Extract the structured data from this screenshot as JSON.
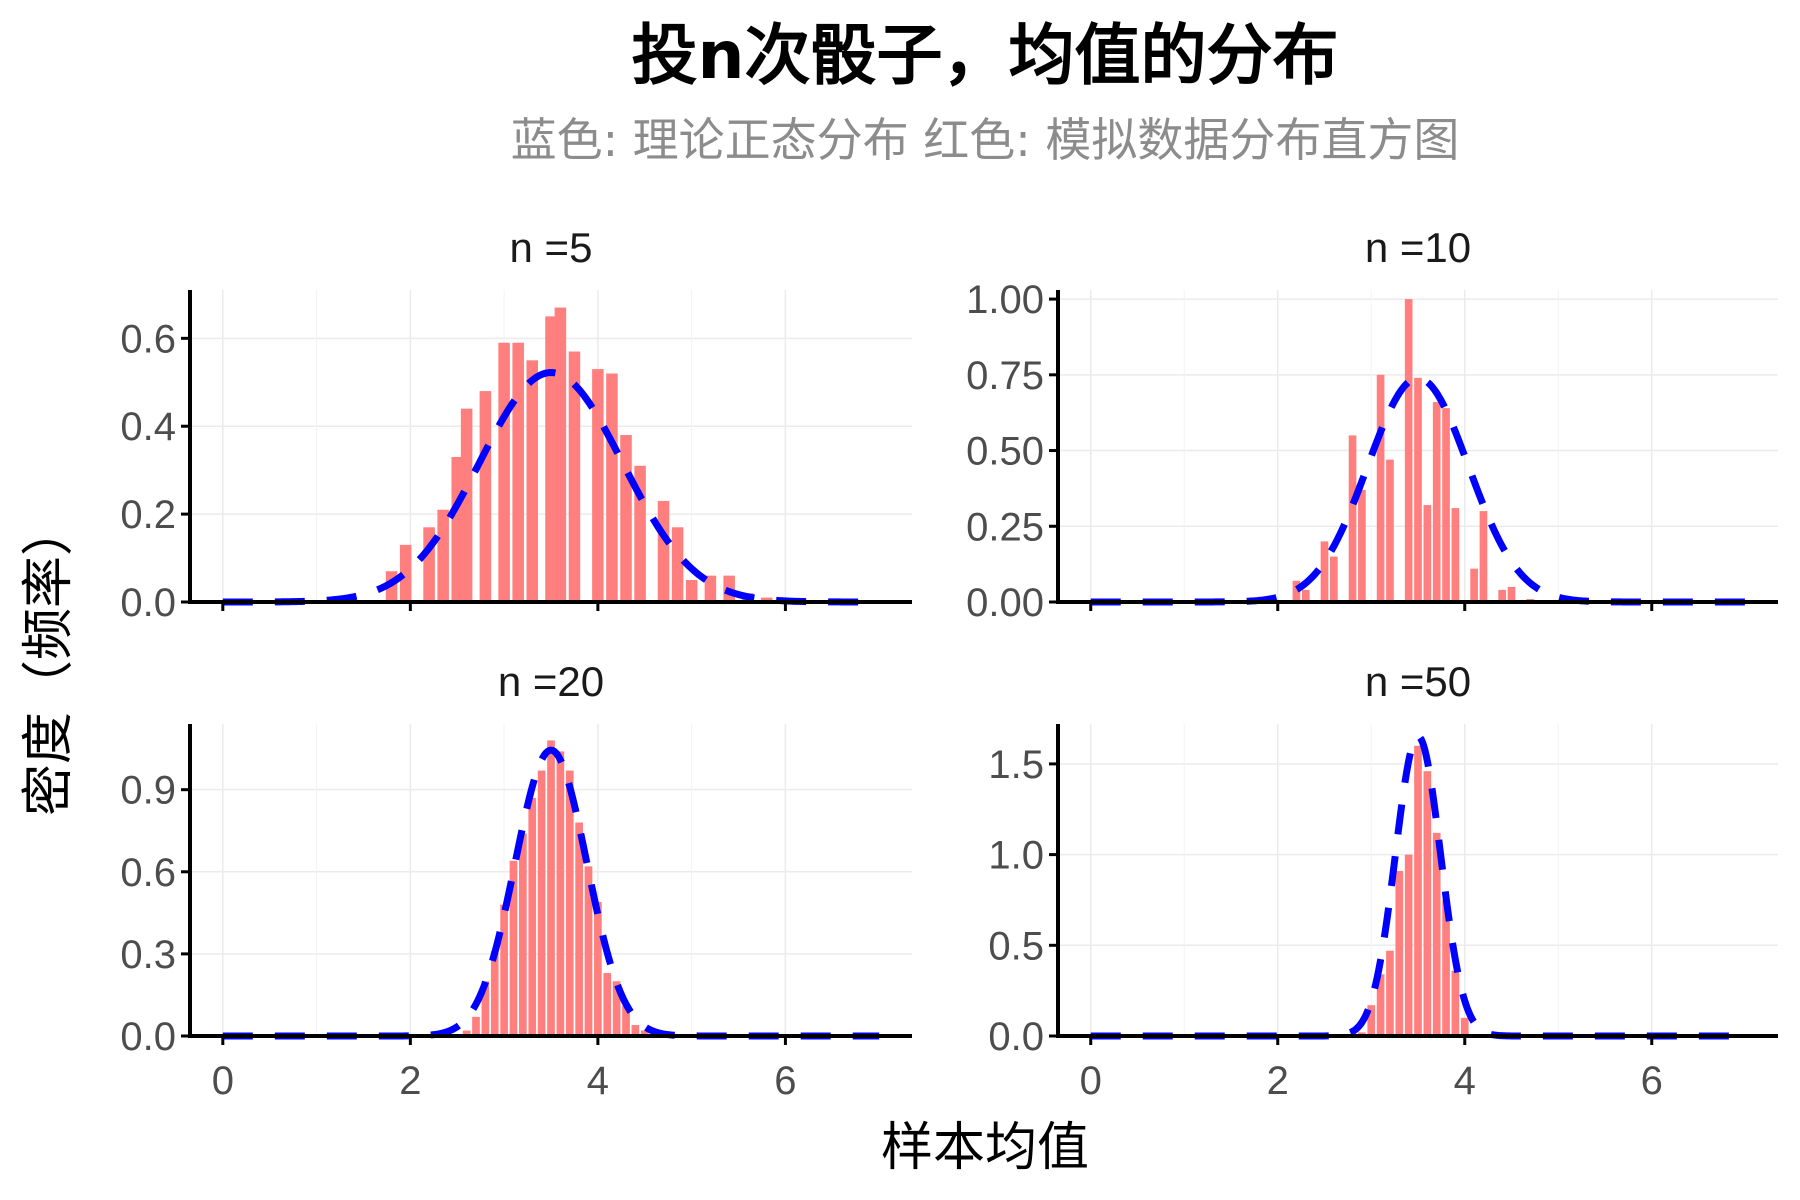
{
  "title": "投n次骰子，均值的分布",
  "subtitle": "蓝色: 理论正态分布   红色: 模拟数据分布直方图",
  "xlabel": "样本均值",
  "ylabel": "密度（频率）",
  "colors": {
    "bar": "#FF7F7F",
    "curve": "#0000FF",
    "axis": "#000000",
    "grid": "#EBEBEB",
    "tick_text": "#4D4D4D"
  },
  "chart_data": [
    {
      "type": "bar",
      "facet_label": "n =5",
      "n": 5,
      "xlim": [
        -0.35,
        7.35
      ],
      "ylim": [
        0,
        0.71
      ],
      "x_ticks": [
        0,
        2,
        4,
        6
      ],
      "y_ticks": [
        0,
        0.2,
        0.4,
        0.6
      ],
      "y_tick_labels": [
        "0.0",
        "0.2",
        "0.4",
        "0.6"
      ],
      "grid": true,
      "bin_width": 0.15,
      "bars": [
        {
          "x": 1.3,
          "y": 0.005
        },
        {
          "x": 1.8,
          "y": 0.07
        },
        {
          "x": 1.95,
          "y": 0.13
        },
        {
          "x": 2.2,
          "y": 0.17
        },
        {
          "x": 2.35,
          "y": 0.21
        },
        {
          "x": 2.5,
          "y": 0.33
        },
        {
          "x": 2.6,
          "y": 0.44
        },
        {
          "x": 2.8,
          "y": 0.48
        },
        {
          "x": 3.0,
          "y": 0.59
        },
        {
          "x": 3.15,
          "y": 0.59
        },
        {
          "x": 3.3,
          "y": 0.55
        },
        {
          "x": 3.5,
          "y": 0.65
        },
        {
          "x": 3.6,
          "y": 0.67
        },
        {
          "x": 3.75,
          "y": 0.57
        },
        {
          "x": 4.0,
          "y": 0.53
        },
        {
          "x": 4.15,
          "y": 0.52
        },
        {
          "x": 4.3,
          "y": 0.38
        },
        {
          "x": 4.45,
          "y": 0.31
        },
        {
          "x": 4.7,
          "y": 0.23
        },
        {
          "x": 4.85,
          "y": 0.17
        },
        {
          "x": 5.0,
          "y": 0.05
        },
        {
          "x": 5.2,
          "y": 0.06
        },
        {
          "x": 5.4,
          "y": 0.06
        },
        {
          "x": 5.6,
          "y": 0.02
        },
        {
          "x": 5.8,
          "y": 0.01
        }
      ],
      "normal_curve": {
        "mean": 3.5,
        "sd": 0.764,
        "x_range": [
          0,
          7
        ]
      }
    },
    {
      "type": "bar",
      "facet_label": "n =10",
      "n": 10,
      "xlim": [
        -0.35,
        7.35
      ],
      "ylim": [
        0,
        1.03
      ],
      "x_ticks": [
        0,
        2,
        4,
        6
      ],
      "y_ticks": [
        0,
        0.25,
        0.5,
        0.75,
        1.0
      ],
      "y_tick_labels": [
        "0.00",
        "0.25",
        "0.50",
        "0.75",
        "1.00"
      ],
      "grid": true,
      "bin_width": 0.1,
      "bars": [
        {
          "x": 2.2,
          "y": 0.07
        },
        {
          "x": 2.3,
          "y": 0.04
        },
        {
          "x": 2.5,
          "y": 0.2
        },
        {
          "x": 2.6,
          "y": 0.15
        },
        {
          "x": 2.8,
          "y": 0.55
        },
        {
          "x": 2.9,
          "y": 0.37
        },
        {
          "x": 3.1,
          "y": 0.75
        },
        {
          "x": 3.2,
          "y": 0.47
        },
        {
          "x": 3.4,
          "y": 1.0
        },
        {
          "x": 3.5,
          "y": 0.74
        },
        {
          "x": 3.6,
          "y": 0.32
        },
        {
          "x": 3.7,
          "y": 0.66
        },
        {
          "x": 3.8,
          "y": 0.64
        },
        {
          "x": 3.9,
          "y": 0.31
        },
        {
          "x": 4.1,
          "y": 0.11
        },
        {
          "x": 4.2,
          "y": 0.3
        },
        {
          "x": 4.4,
          "y": 0.04
        },
        {
          "x": 4.5,
          "y": 0.05
        },
        {
          "x": 4.7,
          "y": 0.01
        }
      ],
      "normal_curve": {
        "mean": 3.5,
        "sd": 0.54,
        "x_range": [
          0,
          7
        ]
      }
    },
    {
      "type": "bar",
      "facet_label": "n =20",
      "n": 20,
      "xlim": [
        -0.35,
        7.35
      ],
      "ylim": [
        0,
        1.14
      ],
      "x_ticks": [
        0,
        2,
        4,
        6
      ],
      "y_ticks": [
        0,
        0.3,
        0.6,
        0.9
      ],
      "y_tick_labels": [
        "0.0",
        "0.3",
        "0.6",
        "0.9"
      ],
      "grid": true,
      "bin_width": 0.1,
      "bars": [
        {
          "x": 2.6,
          "y": 0.02
        },
        {
          "x": 2.7,
          "y": 0.07
        },
        {
          "x": 2.8,
          "y": 0.2
        },
        {
          "x": 2.9,
          "y": 0.31
        },
        {
          "x": 3.0,
          "y": 0.48
        },
        {
          "x": 3.1,
          "y": 0.64
        },
        {
          "x": 3.2,
          "y": 0.74
        },
        {
          "x": 3.3,
          "y": 0.87
        },
        {
          "x": 3.4,
          "y": 0.97
        },
        {
          "x": 3.5,
          "y": 1.08
        },
        {
          "x": 3.6,
          "y": 1.04
        },
        {
          "x": 3.7,
          "y": 0.97
        },
        {
          "x": 3.8,
          "y": 0.78
        },
        {
          "x": 3.9,
          "y": 0.62
        },
        {
          "x": 4.0,
          "y": 0.49
        },
        {
          "x": 4.1,
          "y": 0.23
        },
        {
          "x": 4.2,
          "y": 0.2
        },
        {
          "x": 4.3,
          "y": 0.11
        },
        {
          "x": 4.4,
          "y": 0.04
        },
        {
          "x": 4.5,
          "y": 0.02
        }
      ],
      "normal_curve": {
        "mean": 3.5,
        "sd": 0.382,
        "x_range": [
          0,
          7
        ]
      }
    },
    {
      "type": "bar",
      "facet_label": "n =50",
      "n": 50,
      "xlim": [
        -0.35,
        7.35
      ],
      "ylim": [
        0,
        1.72
      ],
      "x_ticks": [
        0,
        2,
        4,
        6
      ],
      "y_ticks": [
        0,
        0.5,
        1.0,
        1.5
      ],
      "y_tick_labels": [
        "0.0",
        "0.5",
        "1.0",
        "1.5"
      ],
      "grid": true,
      "bin_width": 0.1,
      "bars": [
        {
          "x": 2.9,
          "y": 0.02
        },
        {
          "x": 3.0,
          "y": 0.17
        },
        {
          "x": 3.1,
          "y": 0.34
        },
        {
          "x": 3.2,
          "y": 0.47
        },
        {
          "x": 3.3,
          "y": 0.91
        },
        {
          "x": 3.4,
          "y": 1.0
        },
        {
          "x": 3.5,
          "y": 1.6
        },
        {
          "x": 3.6,
          "y": 1.46
        },
        {
          "x": 3.7,
          "y": 1.12
        },
        {
          "x": 3.8,
          "y": 0.75
        },
        {
          "x": 3.9,
          "y": 0.36
        },
        {
          "x": 4.0,
          "y": 0.1
        }
      ],
      "normal_curve": {
        "mean": 3.5,
        "sd": 0.2415,
        "x_range": [
          0,
          7
        ]
      }
    }
  ]
}
